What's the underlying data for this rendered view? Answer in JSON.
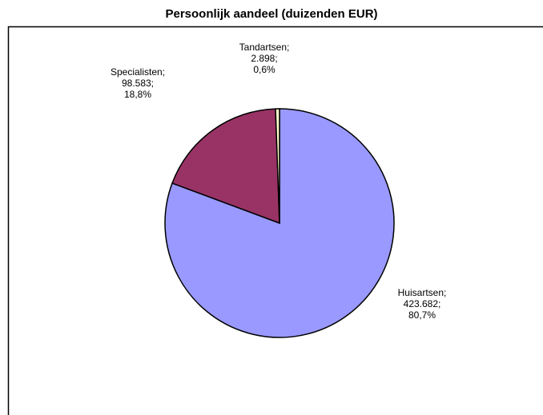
{
  "chart_data": {
    "type": "pie",
    "title": "Persoonlijk aandeel (duizenden EUR)",
    "categories": [
      "Huisartsen;",
      "Specialisten;",
      "Tandartsen;"
    ],
    "values": [
      423682,
      98583,
      2898
    ],
    "value_labels": [
      "423.682;",
      "98.583;",
      "2.898;"
    ],
    "percents": [
      80.7,
      18.8,
      0.6
    ],
    "percent_labels": [
      "80,7%",
      "18,8%",
      "0,6%"
    ],
    "colors": [
      "#9999ff",
      "#993366",
      "#ffffcc"
    ]
  }
}
